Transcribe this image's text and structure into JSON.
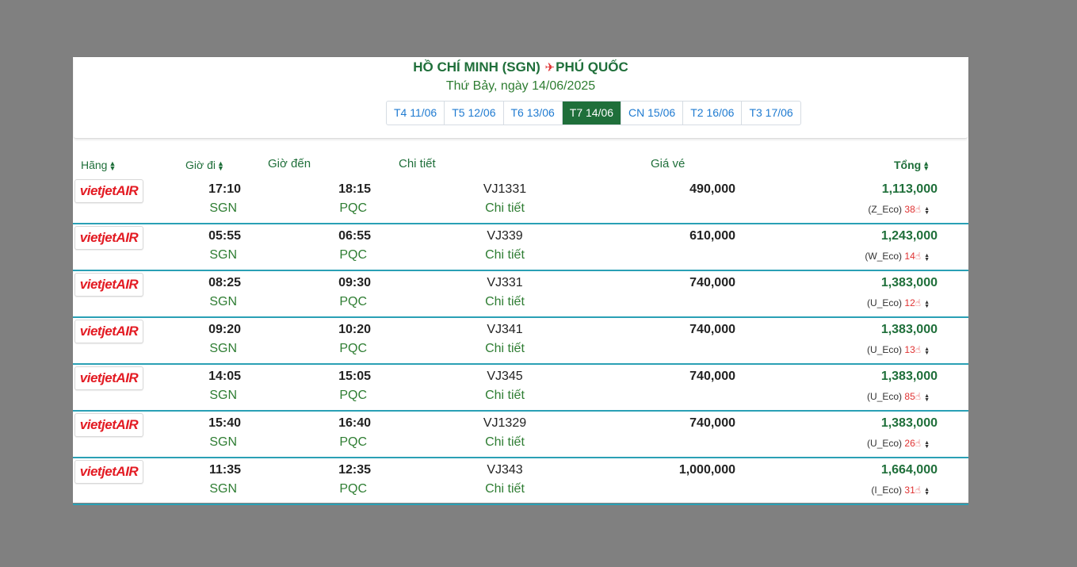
{
  "header": {
    "origin": "HỒ CHÍ MINH (SGN)",
    "destination": "PHÚ QUỐC",
    "date_text": "Thứ Bảy, ngày 14/06/2025",
    "date_tabs": [
      {
        "label": "T4 11/06",
        "active": false
      },
      {
        "label": "T5 12/06",
        "active": false
      },
      {
        "label": "T6 13/06",
        "active": false
      },
      {
        "label": "T7 14/06",
        "active": true
      },
      {
        "label": "CN 15/06",
        "active": false
      },
      {
        "label": "T2 16/06",
        "active": false
      },
      {
        "label": "T3 17/06",
        "active": false
      }
    ]
  },
  "columns": {
    "airline": "Hãng",
    "depart": "Giờ đi",
    "arrive": "Giờ đến",
    "detail": "Chi tiết",
    "price": "Giá vé",
    "total": "Tổng"
  },
  "airline_logo_text": "vietjetAIR",
  "flights": [
    {
      "depart_time": "17:10",
      "depart_code": "SGN",
      "arrive_time": "18:15",
      "arrive_code": "PQC",
      "flight_no": "VJ1331",
      "detail_link": "Chi tiết",
      "price": "490,000",
      "total": "1,113,000",
      "fare_class": "(Z_Eco)",
      "seats": "38"
    },
    {
      "depart_time": "05:55",
      "depart_code": "SGN",
      "arrive_time": "06:55",
      "arrive_code": "PQC",
      "flight_no": "VJ339",
      "detail_link": "Chi tiết",
      "price": "610,000",
      "total": "1,243,000",
      "fare_class": "(W_Eco)",
      "seats": "14"
    },
    {
      "depart_time": "08:25",
      "depart_code": "SGN",
      "arrive_time": "09:30",
      "arrive_code": "PQC",
      "flight_no": "VJ331",
      "detail_link": "Chi tiết",
      "price": "740,000",
      "total": "1,383,000",
      "fare_class": "(U_Eco)",
      "seats": "12"
    },
    {
      "depart_time": "09:20",
      "depart_code": "SGN",
      "arrive_time": "10:20",
      "arrive_code": "PQC",
      "flight_no": "VJ341",
      "detail_link": "Chi tiết",
      "price": "740,000",
      "total": "1,383,000",
      "fare_class": "(U_Eco)",
      "seats": "13"
    },
    {
      "depart_time": "14:05",
      "depart_code": "SGN",
      "arrive_time": "15:05",
      "arrive_code": "PQC",
      "flight_no": "VJ345",
      "detail_link": "Chi tiết",
      "price": "740,000",
      "total": "1,383,000",
      "fare_class": "(U_Eco)",
      "seats": "85"
    },
    {
      "depart_time": "15:40",
      "depart_code": "SGN",
      "arrive_time": "16:40",
      "arrive_code": "PQC",
      "flight_no": "VJ1329",
      "detail_link": "Chi tiết",
      "price": "740,000",
      "total": "1,383,000",
      "fare_class": "(U_Eco)",
      "seats": "26"
    },
    {
      "depart_time": "11:35",
      "depart_code": "SGN",
      "arrive_time": "12:35",
      "arrive_code": "PQC",
      "flight_no": "VJ343",
      "detail_link": "Chi tiết",
      "price": "1,000,000",
      "total": "1,664,000",
      "fare_class": "(I_Eco)",
      "seats": "31"
    }
  ],
  "colors": {
    "brand_green": "#1f6f3a",
    "link_blue": "#1f7bd1",
    "row_divider": "#2aa0b5",
    "vietjet_red": "#e31b23"
  },
  "icons": {
    "route_separator": "airplane-icon",
    "sort": "sort-icon",
    "seats": "thumbs-up-icon",
    "expand": "caret-updown-icon"
  }
}
